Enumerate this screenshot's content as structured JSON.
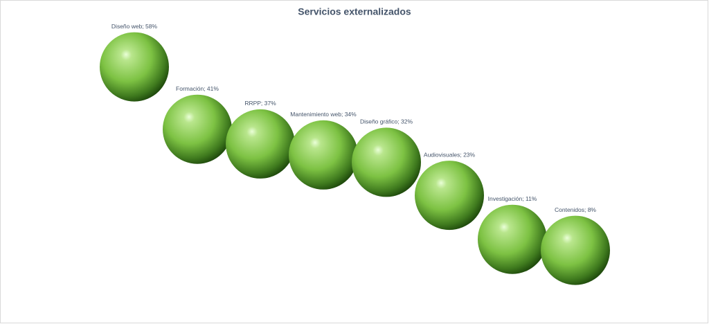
{
  "chart_data": {
    "type": "bubble",
    "title": "Servicios externalizados",
    "values": [
      58,
      41,
      37,
      34,
      32,
      23,
      11,
      8
    ],
    "value_labels": [
      "Diseño web; 58%",
      "Formación; 41%",
      "RRPP; 37%",
      "Mantenimiento web; 34%",
      "Diseño gráfico; 32%",
      "Audiovisuales; 23%",
      "Investigación; 11%",
      "Contenidos; 8%"
    ],
    "ylim": [
      0,
      60
    ],
    "color": "#7dc243"
  }
}
